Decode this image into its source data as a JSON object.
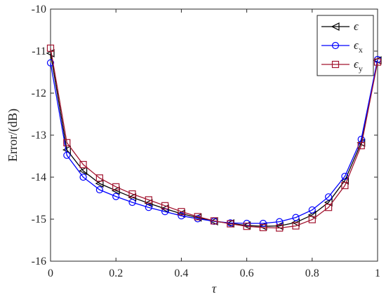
{
  "chart_data": {
    "type": "line",
    "title": "",
    "xlabel": "τ",
    "ylabel": "Error/(dB)",
    "xlim": [
      0,
      1
    ],
    "ylim": [
      -16,
      -10
    ],
    "xticks": [
      0,
      0.2,
      0.4,
      0.6,
      0.8,
      1
    ],
    "xtick_labels": [
      "0",
      "0.2",
      "0.4",
      "0.6",
      "0.8",
      "1"
    ],
    "yticks": [
      -16,
      -15,
      -14,
      -13,
      -12,
      -11,
      -10
    ],
    "ytick_labels": [
      "-16",
      "-15",
      "-14",
      "-13",
      "-12",
      "-11",
      "-10"
    ],
    "grid": false,
    "legend_position": "top-right",
    "x": [
      0,
      0.05,
      0.1,
      0.15,
      0.2,
      0.25,
      0.3,
      0.35,
      0.4,
      0.45,
      0.5,
      0.55,
      0.6,
      0.65,
      0.7,
      0.75,
      0.8,
      0.85,
      0.9,
      0.95,
      1
    ],
    "series": [
      {
        "name": "ϵ",
        "subscript": "",
        "color": "#000000",
        "marker": "triangle-left",
        "values": [
          -11.05,
          -13.35,
          -13.85,
          -14.15,
          -14.32,
          -14.48,
          -14.62,
          -14.75,
          -14.87,
          -14.96,
          -15.05,
          -15.1,
          -15.15,
          -15.17,
          -15.16,
          -15.08,
          -14.9,
          -14.6,
          -14.08,
          -13.18,
          -11.22
        ]
      },
      {
        "name": "ϵ",
        "subscript": "x",
        "color": "#0000ff",
        "marker": "circle",
        "values": [
          -11.28,
          -13.48,
          -14.0,
          -14.3,
          -14.46,
          -14.6,
          -14.72,
          -14.82,
          -14.92,
          -14.99,
          -15.05,
          -15.09,
          -15.1,
          -15.1,
          -15.06,
          -14.96,
          -14.78,
          -14.47,
          -13.98,
          -13.1,
          -11.2
        ]
      },
      {
        "name": "ϵ",
        "subscript": "y",
        "color": "#a2142f",
        "marker": "square",
        "values": [
          -10.93,
          -13.18,
          -13.7,
          -14.02,
          -14.23,
          -14.4,
          -14.54,
          -14.68,
          -14.82,
          -14.94,
          -15.04,
          -15.11,
          -15.17,
          -15.2,
          -15.21,
          -15.16,
          -15.01,
          -14.72,
          -14.2,
          -13.25,
          -11.26
        ]
      }
    ]
  }
}
